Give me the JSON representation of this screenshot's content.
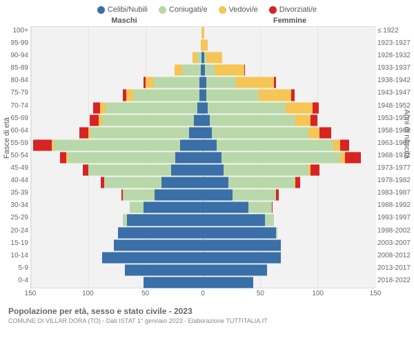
{
  "legend": [
    {
      "label": "Celibi/Nubili",
      "color": "#3a6fa7"
    },
    {
      "label": "Coniugati/e",
      "color": "#b9d8a9"
    },
    {
      "label": "Vedovi/e",
      "color": "#f5c555"
    },
    {
      "label": "Divorziati/e",
      "color": "#d82323"
    }
  ],
  "headers": {
    "left": "Maschi",
    "right": "Femmine"
  },
  "axis": {
    "left_title": "Fasce di età",
    "right_title": "Anni di nascita",
    "xmax": 150,
    "xticks": [
      150,
      100,
      50,
      0,
      50,
      100,
      150
    ]
  },
  "colors": {
    "single": "#3a6fa7",
    "married": "#b9d8a9",
    "widowed": "#f5c555",
    "divorced": "#d82323",
    "bg": "#f2f2f2",
    "grid": "#e5e5e5"
  },
  "rows": [
    {
      "age": "100+",
      "birth": "≤ 1922",
      "m": {
        "s": 0,
        "m": 0,
        "w": 1,
        "d": 0
      },
      "f": {
        "s": 0,
        "m": 0,
        "w": 1,
        "d": 0
      }
    },
    {
      "age": "95-99",
      "birth": "1923-1927",
      "m": {
        "s": 0,
        "m": 0,
        "w": 2,
        "d": 0
      },
      "f": {
        "s": 0,
        "m": 0,
        "w": 4,
        "d": 0
      }
    },
    {
      "age": "90-94",
      "birth": "1928-1932",
      "m": {
        "s": 1,
        "m": 4,
        "w": 4,
        "d": 0
      },
      "f": {
        "s": 1,
        "m": 2,
        "w": 14,
        "d": 0
      }
    },
    {
      "age": "85-89",
      "birth": "1933-1937",
      "m": {
        "s": 2,
        "m": 16,
        "w": 7,
        "d": 0
      },
      "f": {
        "s": 2,
        "m": 8,
        "w": 26,
        "d": 1
      }
    },
    {
      "age": "80-84",
      "birth": "1938-1942",
      "m": {
        "s": 3,
        "m": 40,
        "w": 7,
        "d": 2
      },
      "f": {
        "s": 3,
        "m": 26,
        "w": 33,
        "d": 2
      }
    },
    {
      "age": "75-79",
      "birth": "1943-1947",
      "m": {
        "s": 3,
        "m": 58,
        "w": 6,
        "d": 3
      },
      "f": {
        "s": 3,
        "m": 46,
        "w": 28,
        "d": 3
      }
    },
    {
      "age": "70-74",
      "birth": "1948-1952",
      "m": {
        "s": 5,
        "m": 80,
        "w": 5,
        "d": 6
      },
      "f": {
        "s": 4,
        "m": 68,
        "w": 24,
        "d": 5
      }
    },
    {
      "age": "65-69",
      "birth": "1953-1957",
      "m": {
        "s": 8,
        "m": 80,
        "w": 3,
        "d": 8
      },
      "f": {
        "s": 6,
        "m": 74,
        "w": 14,
        "d": 6
      }
    },
    {
      "age": "60-64",
      "birth": "1958-1962",
      "m": {
        "s": 12,
        "m": 86,
        "w": 2,
        "d": 8
      },
      "f": {
        "s": 8,
        "m": 84,
        "w": 10,
        "d": 10
      }
    },
    {
      "age": "55-59",
      "birth": "1963-1967",
      "m": {
        "s": 20,
        "m": 110,
        "w": 2,
        "d": 16
      },
      "f": {
        "s": 12,
        "m": 102,
        "w": 6,
        "d": 8
      }
    },
    {
      "age": "50-54",
      "birth": "1968-1972",
      "m": {
        "s": 24,
        "m": 94,
        "w": 1,
        "d": 6
      },
      "f": {
        "s": 16,
        "m": 104,
        "w": 4,
        "d": 14
      }
    },
    {
      "age": "45-49",
      "birth": "1973-1977",
      "m": {
        "s": 28,
        "m": 72,
        "w": 0,
        "d": 5
      },
      "f": {
        "s": 18,
        "m": 74,
        "w": 2,
        "d": 8
      }
    },
    {
      "age": "40-44",
      "birth": "1978-1982",
      "m": {
        "s": 36,
        "m": 50,
        "w": 0,
        "d": 3
      },
      "f": {
        "s": 22,
        "m": 58,
        "w": 1,
        "d": 4
      }
    },
    {
      "age": "35-39",
      "birth": "1983-1987",
      "m": {
        "s": 42,
        "m": 28,
        "w": 0,
        "d": 1
      },
      "f": {
        "s": 26,
        "m": 38,
        "w": 0,
        "d": 2
      }
    },
    {
      "age": "30-34",
      "birth": "1988-1992",
      "m": {
        "s": 52,
        "m": 12,
        "w": 0,
        "d": 0
      },
      "f": {
        "s": 40,
        "m": 20,
        "w": 0,
        "d": 1
      }
    },
    {
      "age": "25-29",
      "birth": "1993-1997",
      "m": {
        "s": 66,
        "m": 4,
        "w": 0,
        "d": 0
      },
      "f": {
        "s": 54,
        "m": 8,
        "w": 0,
        "d": 0
      }
    },
    {
      "age": "20-24",
      "birth": "1998-2002",
      "m": {
        "s": 74,
        "m": 0,
        "w": 0,
        "d": 0
      },
      "f": {
        "s": 64,
        "m": 1,
        "w": 0,
        "d": 0
      }
    },
    {
      "age": "15-19",
      "birth": "2003-2007",
      "m": {
        "s": 78,
        "m": 0,
        "w": 0,
        "d": 0
      },
      "f": {
        "s": 68,
        "m": 0,
        "w": 0,
        "d": 0
      }
    },
    {
      "age": "10-14",
      "birth": "2008-2012",
      "m": {
        "s": 88,
        "m": 0,
        "w": 0,
        "d": 0
      },
      "f": {
        "s": 68,
        "m": 0,
        "w": 0,
        "d": 0
      }
    },
    {
      "age": "5-9",
      "birth": "2013-2017",
      "m": {
        "s": 68,
        "m": 0,
        "w": 0,
        "d": 0
      },
      "f": {
        "s": 56,
        "m": 0,
        "w": 0,
        "d": 0
      }
    },
    {
      "age": "0-4",
      "birth": "2018-2022",
      "m": {
        "s": 52,
        "m": 0,
        "w": 0,
        "d": 0
      },
      "f": {
        "s": 44,
        "m": 0,
        "w": 0,
        "d": 0
      }
    }
  ],
  "footer": {
    "title": "Popolazione per età, sesso e stato civile - 2023",
    "sub": "COMUNE DI VILLAR DORA (TO) - Dati ISTAT 1° gennaio 2023 - Elaborazione TUTTITALIA.IT"
  }
}
